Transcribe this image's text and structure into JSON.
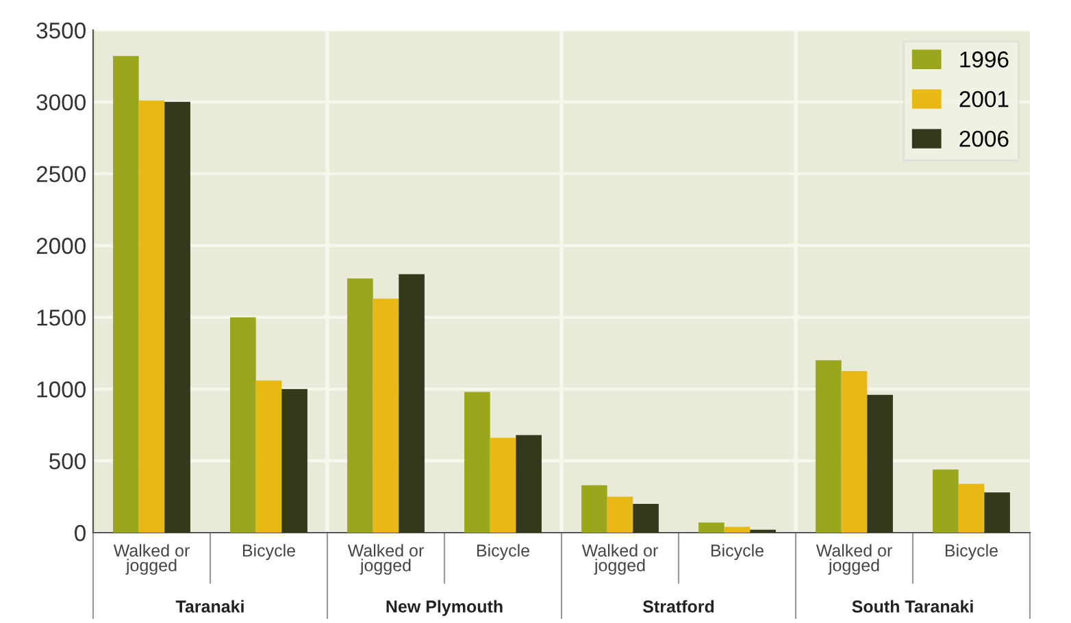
{
  "chart_data": {
    "type": "bar",
    "categories": [
      "Walked or\njogged",
      "Bicycle",
      "Walked or\njogged",
      "Bicycle",
      "Walked or\njogged",
      "Bicycle",
      "Walked or\njogged",
      "Bicycle"
    ],
    "series": [
      {
        "name": "1996",
        "color": "#9aa61c",
        "values": [
          3320,
          1500,
          1770,
          980,
          330,
          70,
          1200,
          440
        ]
      },
      {
        "name": "2001",
        "color": "#e8b915",
        "values": [
          3010,
          1060,
          1630,
          660,
          250,
          40,
          1125,
          340
        ]
      },
      {
        "name": "2006",
        "color": "#333a1c",
        "values": [
          3000,
          1000,
          1800,
          680,
          200,
          20,
          960,
          280
        ]
      }
    ],
    "annotations": [
      "Taranaki",
      "New Plymouth",
      "Stratford",
      "South Taranaki"
    ],
    "ylim": [
      0,
      3500
    ],
    "yticks": [
      0,
      500,
      1000,
      1500,
      2000,
      2500,
      3000,
      3500
    ],
    "grid": "y",
    "legend": "top right"
  }
}
